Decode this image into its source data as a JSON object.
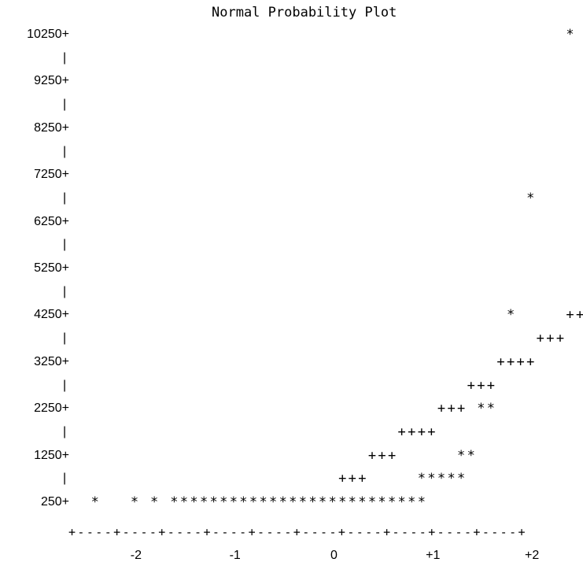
{
  "chart_data": {
    "type": "scatter",
    "title": "Normal Probability Plot",
    "xlabel": "",
    "ylabel": "",
    "y_ticks": [
      "10250+",
      "9250+",
      "8250+",
      "7250+",
      "6250+",
      "5250+",
      "4250+",
      "3250+",
      "2250+",
      "1250+",
      "250+"
    ],
    "y_tick_values": [
      10250,
      9250,
      8250,
      7250,
      6250,
      5250,
      4250,
      3250,
      2250,
      1250,
      250
    ],
    "x_ticks": [
      "-2",
      "-1",
      "0",
      "+1",
      "+2"
    ],
    "x_tick_values": [
      -2,
      -1,
      0,
      1,
      2
    ],
    "x_axis_line": "+----+----+----+----+----+----+----+----+----+----+",
    "xlim": [
      -2.5,
      2.5
    ],
    "ylim": [
      250,
      10250
    ],
    "series": [
      {
        "marker": "*",
        "points": [
          {
            "x": -2.4,
            "y": 250
          },
          {
            "x": -2.0,
            "y": 250
          },
          {
            "x": -1.8,
            "y": 250
          },
          {
            "x": -1.6,
            "y": 250
          },
          {
            "x": -1.5,
            "y": 250
          },
          {
            "x": -1.4,
            "y": 250
          },
          {
            "x": -1.3,
            "y": 250
          },
          {
            "x": -1.2,
            "y": 250
          },
          {
            "x": -1.1,
            "y": 250
          },
          {
            "x": -1.0,
            "y": 250
          },
          {
            "x": -0.9,
            "y": 250
          },
          {
            "x": -0.8,
            "y": 250
          },
          {
            "x": -0.7,
            "y": 250
          },
          {
            "x": -0.6,
            "y": 250
          },
          {
            "x": -0.5,
            "y": 250
          },
          {
            "x": -0.4,
            "y": 250
          },
          {
            "x": -0.3,
            "y": 250
          },
          {
            "x": -0.2,
            "y": 250
          },
          {
            "x": -0.1,
            "y": 250
          },
          {
            "x": 0.0,
            "y": 250
          },
          {
            "x": 0.1,
            "y": 250
          },
          {
            "x": 0.2,
            "y": 250
          },
          {
            "x": 0.3,
            "y": 250
          },
          {
            "x": 0.4,
            "y": 250
          },
          {
            "x": 0.5,
            "y": 250
          },
          {
            "x": 0.6,
            "y": 250
          },
          {
            "x": 0.7,
            "y": 250
          },
          {
            "x": 0.8,
            "y": 250
          },
          {
            "x": 0.9,
            "y": 250
          },
          {
            "x": 0.9,
            "y": 750
          },
          {
            "x": 1.0,
            "y": 750
          },
          {
            "x": 1.1,
            "y": 750
          },
          {
            "x": 1.2,
            "y": 750
          },
          {
            "x": 1.3,
            "y": 750
          },
          {
            "x": 1.3,
            "y": 1250
          },
          {
            "x": 1.4,
            "y": 1250
          },
          {
            "x": 1.5,
            "y": 2250
          },
          {
            "x": 1.6,
            "y": 2250
          },
          {
            "x": 1.8,
            "y": 4250
          },
          {
            "x": 2.0,
            "y": 6750
          },
          {
            "x": 2.4,
            "y": 10250
          }
        ]
      },
      {
        "marker": "+",
        "points": [
          {
            "x": 0.1,
            "y": 750
          },
          {
            "x": 0.2,
            "y": 750
          },
          {
            "x": 0.3,
            "y": 750
          },
          {
            "x": 0.4,
            "y": 1250
          },
          {
            "x": 0.5,
            "y": 1250
          },
          {
            "x": 0.6,
            "y": 1250
          },
          {
            "x": 0.7,
            "y": 1750
          },
          {
            "x": 0.8,
            "y": 1750
          },
          {
            "x": 0.9,
            "y": 1750
          },
          {
            "x": 1.0,
            "y": 1750
          },
          {
            "x": 1.1,
            "y": 2250
          },
          {
            "x": 1.2,
            "y": 2250
          },
          {
            "x": 1.3,
            "y": 2250
          },
          {
            "x": 1.4,
            "y": 2750
          },
          {
            "x": 1.5,
            "y": 2750
          },
          {
            "x": 1.6,
            "y": 2750
          },
          {
            "x": 1.7,
            "y": 3250
          },
          {
            "x": 1.8,
            "y": 3250
          },
          {
            "x": 1.9,
            "y": 3250
          },
          {
            "x": 2.0,
            "y": 3250
          },
          {
            "x": 2.1,
            "y": 3750
          },
          {
            "x": 2.2,
            "y": 3750
          },
          {
            "x": 2.3,
            "y": 3750
          },
          {
            "x": 2.4,
            "y": 4250
          },
          {
            "x": 2.5,
            "y": 4250
          }
        ]
      }
    ]
  }
}
